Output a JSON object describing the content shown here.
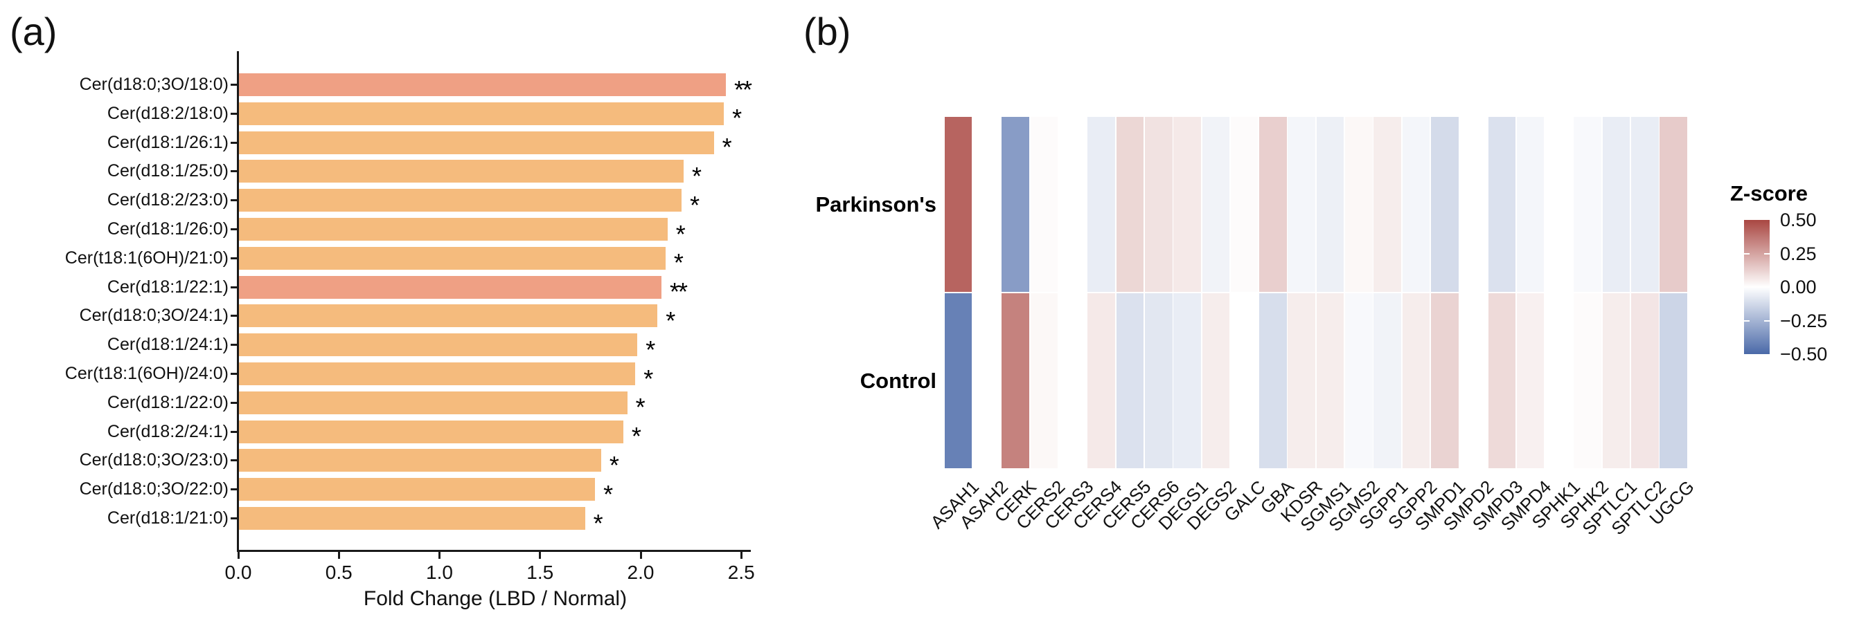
{
  "figure": {
    "panel_a_label": "(a)",
    "panel_b_label": "(b)"
  },
  "chart_data": [
    {
      "type": "bar",
      "orientation": "horizontal",
      "xlabel": "Fold Change (LBD / Normal)",
      "xlim": [
        0,
        2.5
      ],
      "xticks": [
        0.0,
        0.5,
        1.0,
        1.5,
        2.0,
        2.5
      ],
      "grid": false,
      "bar_color": "#F5BB7D",
      "highlight_color": "#EFA084",
      "categories": [
        "Cer(d18:0;3O/18:0)",
        "Cer(d18:2/18:0)",
        "Cer(d18:1/26:1)",
        "Cer(d18:1/25:0)",
        "Cer(d18:2/23:0)",
        "Cer(d18:1/26:0)",
        "Cer(t18:1(6OH)/21:0)",
        "Cer(d18:1/22:1)",
        "Cer(d18:0;3O/24:1)",
        "Cer(d18:1/24:1)",
        "Cer(t18:1(6OH)/24:0)",
        "Cer(d18:1/22:0)",
        "Cer(d18:2/24:1)",
        "Cer(d18:0;3O/23:0)",
        "Cer(d18:0;3O/22:0)",
        "Cer(d18:1/21:0)"
      ],
      "values": [
        2.42,
        2.41,
        2.36,
        2.21,
        2.2,
        2.13,
        2.12,
        2.1,
        2.08,
        1.98,
        1.97,
        1.93,
        1.91,
        1.8,
        1.77,
        1.72
      ],
      "significance": [
        "**",
        "*",
        "*",
        "*",
        "*",
        "*",
        "*",
        "**",
        "*",
        "*",
        "*",
        "*",
        "*",
        "*",
        "*",
        "*"
      ]
    },
    {
      "type": "heatmap",
      "rows": [
        "Parkinson's",
        "Control"
      ],
      "columns": [
        "ASAH1",
        "ASAH2",
        "CERK",
        "CERS2",
        "CERS3",
        "CERS4",
        "CERS5",
        "CERS6",
        "DEGS1",
        "DEGS2",
        "GALC",
        "GBA",
        "KDSR",
        "SGMS1",
        "SGMS2",
        "SGPP1",
        "SGPP2",
        "SMPD1",
        "SMPD2",
        "SMPD3",
        "SMPD4",
        "SPHK1",
        "SPHK2",
        "SPTLC1",
        "SPTLC2",
        "UGCG"
      ],
      "series": [
        {
          "name": "Parkinson's",
          "values": [
            0.42,
            0.0,
            -0.33,
            0.01,
            0.0,
            -0.06,
            0.11,
            0.08,
            0.06,
            -0.04,
            0.01,
            0.13,
            -0.03,
            -0.05,
            0.02,
            0.05,
            -0.03,
            -0.12,
            0.0,
            -0.1,
            -0.03,
            0.0,
            -0.02,
            -0.06,
            -0.06,
            0.14
          ]
        },
        {
          "name": "Control",
          "values": [
            -0.42,
            0.0,
            0.34,
            0.02,
            0.0,
            0.06,
            -0.1,
            -0.08,
            -0.06,
            0.05,
            0.0,
            -0.11,
            0.05,
            0.05,
            -0.02,
            -0.04,
            0.05,
            0.12,
            0.0,
            0.1,
            0.04,
            0.0,
            0.01,
            0.05,
            0.07,
            -0.14
          ]
        }
      ],
      "colorbar": {
        "title": "Z-score",
        "tick_labels": [
          "0.50",
          "0.25",
          "0.00",
          "−0.25",
          "−0.50"
        ],
        "tick_values": [
          0.5,
          0.25,
          0.0,
          -0.25,
          -0.5
        ],
        "vmin": -0.5,
        "vmax": 0.5,
        "color_positive": "#A94742",
        "color_negative": "#4A69A8",
        "color_mid": "#FFFFFF"
      }
    }
  ]
}
